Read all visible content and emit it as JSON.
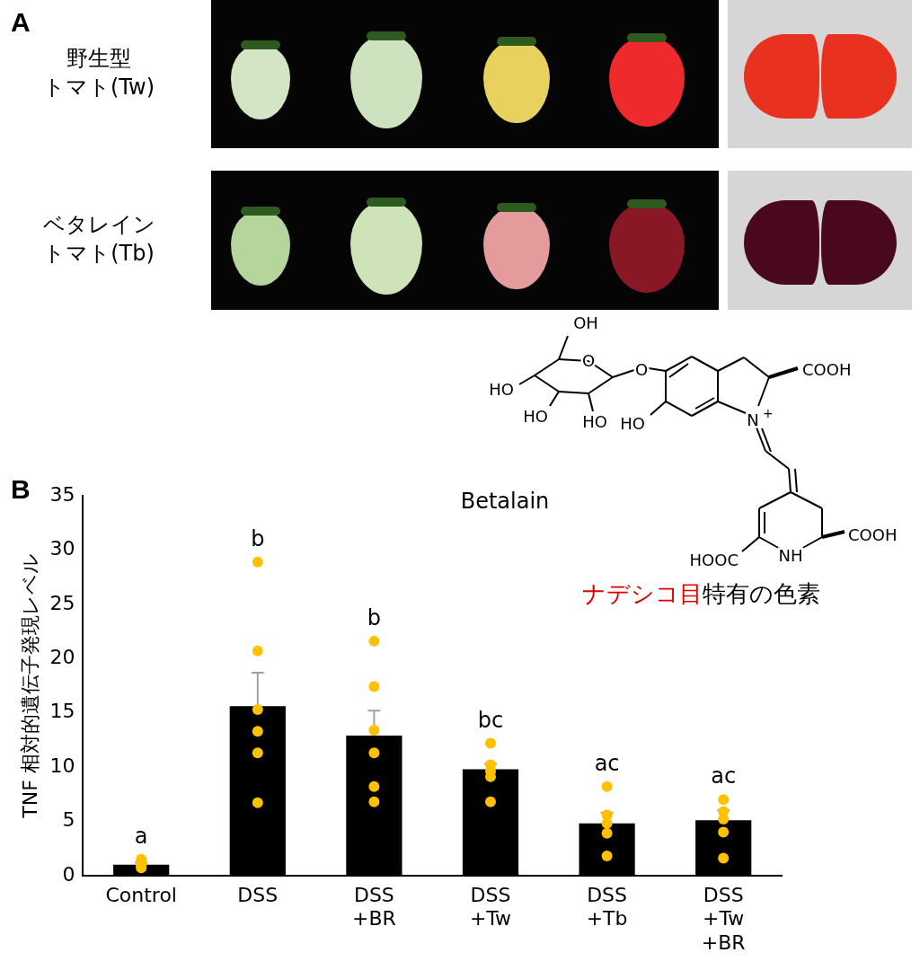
{
  "panel_a": {
    "label": "A",
    "rows": [
      {
        "label": [
          "野生型",
          "トマト(Tw)"
        ]
      },
      {
        "label": [
          "ベタレイン",
          "トマト(Tb)"
        ]
      }
    ]
  },
  "structure": {
    "name": "Betalain",
    "atom_labels": [
      "OH",
      "HO",
      "HO",
      "HO",
      "O",
      "O",
      "HO",
      "N+",
      "COOH",
      "COOH",
      "NH",
      "HOOC"
    ]
  },
  "annotation": {
    "highlight": "ナデシコ目",
    "text": "特有の色素"
  },
  "chart_data": {
    "panel_label": "B",
    "type": "bar",
    "categories": [
      [
        "Control"
      ],
      [
        "DSS"
      ],
      [
        "DSS",
        "+BR"
      ],
      [
        "DSS",
        "+Tw"
      ],
      [
        "DSS",
        "+Tb"
      ],
      [
        "DSS",
        "+Tw",
        "+BR"
      ]
    ],
    "values": [
      1.0,
      15.6,
      12.9,
      9.8,
      4.8,
      5.1
    ],
    "errors": [
      0.2,
      3.1,
      2.3,
      0.5,
      1.0,
      0.9
    ],
    "points": [
      [
        0.7,
        0.9,
        1.0,
        1.2,
        1.5
      ],
      [
        28.9,
        20.7,
        15.3,
        13.3,
        11.3,
        6.7
      ],
      [
        21.6,
        17.4,
        13.4,
        11.3,
        8.2,
        6.8
      ],
      [
        12.2,
        10.2,
        9.6,
        9.1,
        6.8
      ],
      [
        8.2,
        5.6,
        4.8,
        3.9,
        1.8
      ],
      [
        7.0,
        5.9,
        5.2,
        4.0,
        1.6
      ]
    ],
    "significance_labels": [
      "a",
      "b",
      "b",
      "bc",
      "ac",
      "ac"
    ],
    "y_label": "TNF 相対的遺伝子発現レベル",
    "ylim": [
      0,
      35
    ],
    "yticks": [
      0,
      5,
      10,
      15,
      20,
      25,
      30,
      35
    ],
    "color": "#000000",
    "grid": false
  }
}
